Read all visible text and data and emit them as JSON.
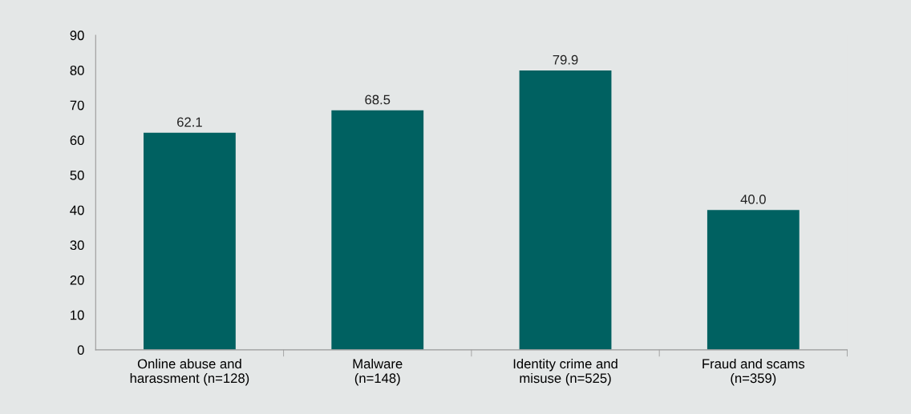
{
  "chart_data": {
    "type": "bar",
    "categories": [
      "Online abuse and\nharassment (n=128)",
      "Malware\n(n=148)",
      "Identity crime and\nmisuse (n=525)",
      "Fraud and scams\n(n=359)"
    ],
    "values": [
      62.1,
      68.5,
      79.9,
      40.0
    ],
    "value_labels": [
      "62.1",
      "68.5",
      "79.9",
      "40.0"
    ],
    "color": "#006161",
    "ylim": [
      0,
      90
    ],
    "yticks": [
      0,
      10,
      20,
      30,
      40,
      50,
      60,
      70,
      80,
      90
    ],
    "grid": false
  }
}
